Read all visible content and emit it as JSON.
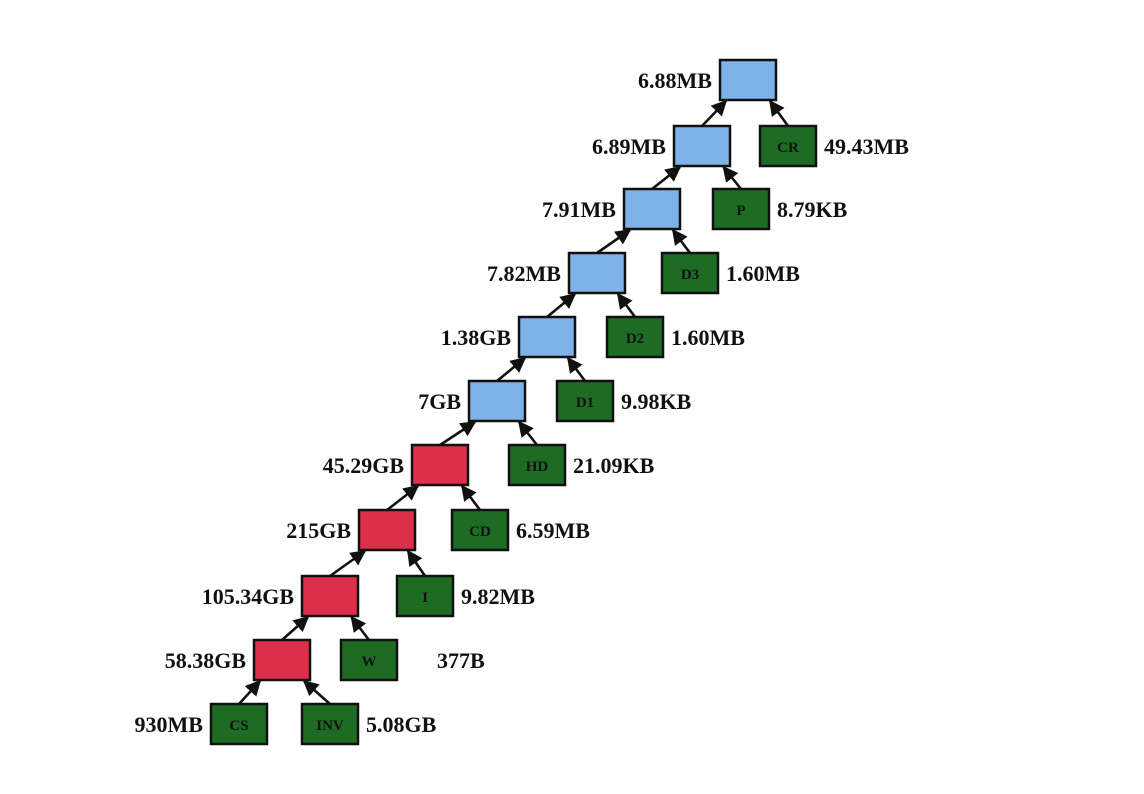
{
  "colors": {
    "join_light": "#7DB3E8",
    "join_heavy": "#DC2F4A",
    "leaf": "#1E6B24",
    "edge": "#111111"
  },
  "nodes": {
    "j1": {
      "kind": "join_light",
      "size": "6.88MB"
    },
    "j2": {
      "kind": "join_light",
      "size": "6.89MB"
    },
    "j3": {
      "kind": "join_light",
      "size": "7.91MB"
    },
    "j4": {
      "kind": "join_light",
      "size": "7.82MB"
    },
    "j5": {
      "kind": "join_light",
      "size": "1.38GB"
    },
    "j6": {
      "kind": "join_light",
      "size": "7GB"
    },
    "j7": {
      "kind": "join_heavy",
      "size": "45.29GB"
    },
    "j8": {
      "kind": "join_heavy",
      "size": "215GB"
    },
    "j9": {
      "kind": "join_heavy",
      "size": "105.34GB"
    },
    "j10": {
      "kind": "join_heavy",
      "size": "58.38GB"
    },
    "cr": {
      "kind": "leaf",
      "code": "CR",
      "size": "49.43MB"
    },
    "p": {
      "kind": "leaf",
      "code": "P",
      "size": "8.79KB"
    },
    "d3": {
      "kind": "leaf",
      "code": "D3",
      "size": "1.60MB"
    },
    "d2": {
      "kind": "leaf",
      "code": "D2",
      "size": "1.60MB"
    },
    "d1": {
      "kind": "leaf",
      "code": "D1",
      "size": "9.98KB"
    },
    "hd": {
      "kind": "leaf",
      "code": "HD",
      "size": "21.09KB"
    },
    "cd": {
      "kind": "leaf",
      "code": "CD",
      "size": "6.59MB"
    },
    "i": {
      "kind": "leaf",
      "code": "I",
      "size": "9.82MB"
    },
    "w": {
      "kind": "leaf",
      "code": "W",
      "size": "377B"
    },
    "cs": {
      "kind": "leaf",
      "code": "CS",
      "size": "930MB"
    },
    "inv": {
      "kind": "leaf",
      "code": "INV",
      "size": "5.08GB"
    }
  },
  "edges": [
    [
      "j2",
      "j1"
    ],
    [
      "cr",
      "j1"
    ],
    [
      "j3",
      "j2"
    ],
    [
      "p",
      "j2"
    ],
    [
      "j4",
      "j3"
    ],
    [
      "d3",
      "j3"
    ],
    [
      "j5",
      "j4"
    ],
    [
      "d2",
      "j4"
    ],
    [
      "j6",
      "j5"
    ],
    [
      "d1",
      "j5"
    ],
    [
      "j7",
      "j6"
    ],
    [
      "hd",
      "j6"
    ],
    [
      "j8",
      "j7"
    ],
    [
      "cd",
      "j7"
    ],
    [
      "j9",
      "j8"
    ],
    [
      "i",
      "j8"
    ],
    [
      "j10",
      "j9"
    ],
    [
      "w",
      "j9"
    ],
    [
      "cs",
      "j10"
    ],
    [
      "inv",
      "j10"
    ]
  ]
}
